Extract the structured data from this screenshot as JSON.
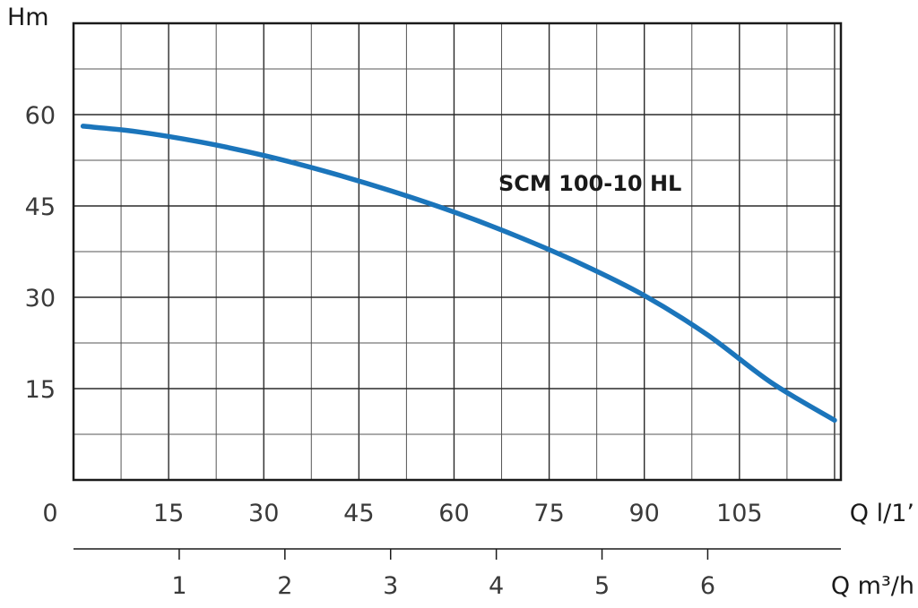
{
  "chart_data": {
    "type": "line",
    "xlabel": "Q l/1’",
    "ylabel": "Hm",
    "xlim": [
      0,
      121
    ],
    "ylim": [
      0,
      75
    ],
    "x_ticks": [
      "0",
      "15",
      "30",
      "45",
      "60",
      "75",
      "90",
      "105"
    ],
    "y_ticks": [
      "15",
      "30",
      "45",
      "60"
    ],
    "secondary_x_axis": {
      "label": "Q m³/h",
      "ticks": [
        "1",
        "2",
        "3",
        "4",
        "5",
        "6"
      ]
    },
    "grid": true,
    "series": [
      {
        "name": "SCM 100-10 HL",
        "color": "#1b75bb",
        "x": [
          1.5,
          10,
          20,
          30,
          40,
          50,
          60,
          70,
          80,
          90,
          100,
          110,
          120
        ],
        "y": [
          58.1,
          57.2,
          55.5,
          53.3,
          50.6,
          47.5,
          44.0,
          40.0,
          35.5,
          30.3,
          23.8,
          16.0,
          9.8
        ]
      }
    ]
  }
}
